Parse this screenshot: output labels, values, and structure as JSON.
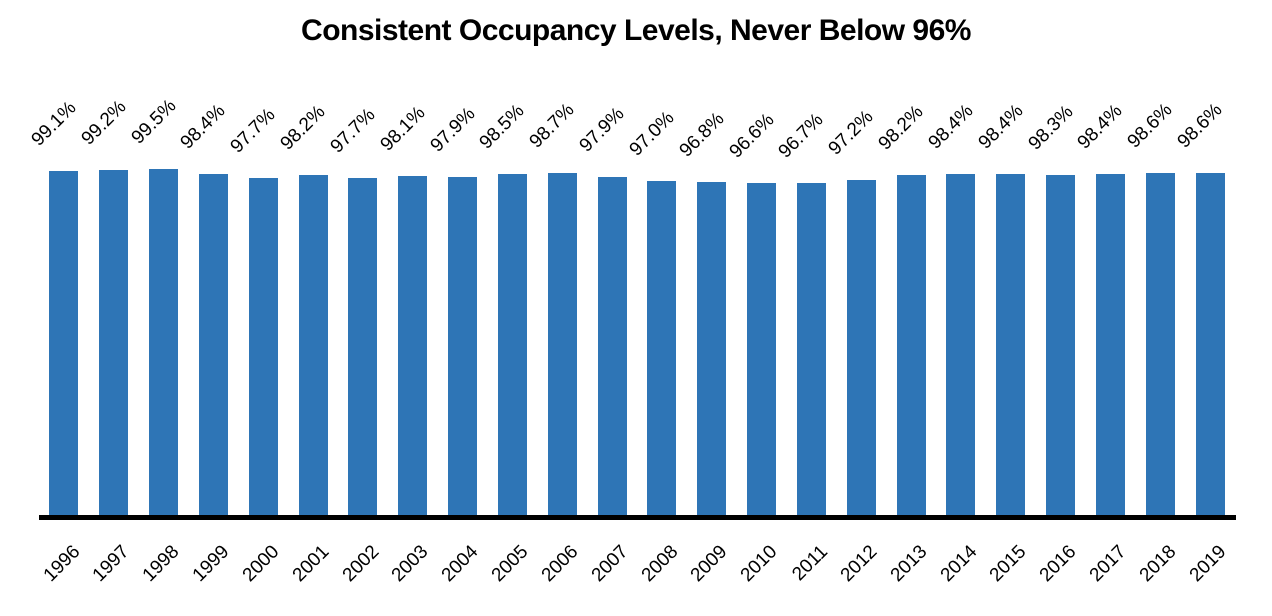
{
  "chart_data": {
    "type": "bar",
    "title": "Consistent Occupancy Levels, Never Below 96%",
    "categories": [
      "1996",
      "1997",
      "1998",
      "1999",
      "2000",
      "2001",
      "2002",
      "2003",
      "2004",
      "2005",
      "2006",
      "2007",
      "2008",
      "2009",
      "2010",
      "2011",
      "2012",
      "2013",
      "2014",
      "2015",
      "2016",
      "2017",
      "2018",
      "2019"
    ],
    "values": [
      99.1,
      99.2,
      99.5,
      98.4,
      97.7,
      98.2,
      97.7,
      98.1,
      97.9,
      98.5,
      98.7,
      97.9,
      97.0,
      96.8,
      96.6,
      96.7,
      97.2,
      98.2,
      98.4,
      98.4,
      98.3,
      98.4,
      98.6,
      98.6
    ],
    "data_labels": [
      "99.1%",
      "99.2%",
      "99.5%",
      "98.4%",
      "97.7%",
      "98.2%",
      "97.7%",
      "98.1%",
      "97.9%",
      "98.5%",
      "98.7%",
      "97.9%",
      "97.0%",
      "96.8%",
      "96.6%",
      "96.7%",
      "97.2%",
      "98.2%",
      "98.4%",
      "98.4%",
      "98.3%",
      "98.4%",
      "98.6%",
      "98.6%"
    ],
    "xlabel": "",
    "ylabel": "",
    "ylim": [
      30,
      100
    ],
    "grid": false,
    "legend": "none",
    "label_rotation_deg": 45,
    "bar_color": "#2E75B6",
    "axis_line_color": "#000000",
    "text_color": "#000000"
  }
}
